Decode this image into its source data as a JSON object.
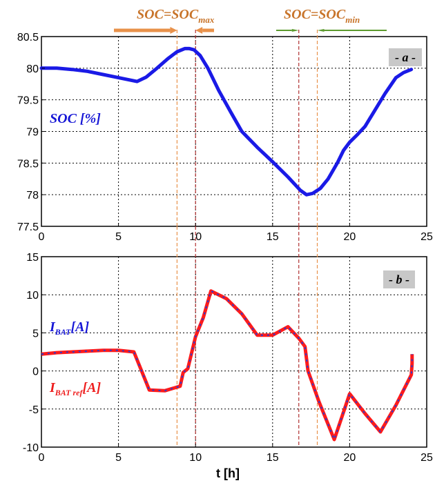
{
  "colors": {
    "soc_line": "#1a1ae6",
    "ibat_ref": "#ff1a1a",
    "ibat": "#2a3ad0",
    "orange_arrow": "#e8914a",
    "green_arrow": "#5c9a2e",
    "orange_annotation": "#c8742a",
    "tag_background": "#c8c8c8",
    "vline_orange": "#e8914a",
    "vline_red": "#b03030"
  },
  "annotations": {
    "soc_max": {
      "base": "SOC=SOC",
      "sub": "max"
    },
    "soc_min": {
      "base": "SOC=SOC",
      "sub": "min"
    }
  },
  "xlabel": "t [h]",
  "chart_data": [
    {
      "type": "line",
      "panel_tag": "- a -",
      "series_label": {
        "base": "SOC [%]"
      },
      "xlim": [
        0,
        25
      ],
      "ylim": [
        77.5,
        80.5
      ],
      "xticks": [
        "0",
        "5",
        "10",
        "15",
        "20",
        "25"
      ],
      "yticks": [
        "77.5",
        "78",
        "78.5",
        "79",
        "79.5",
        "80",
        "80.5"
      ],
      "grid": true,
      "series": [
        {
          "x": [
            0,
            1,
            2,
            3,
            4,
            5,
            5.6,
            6.2,
            6.8,
            7.5,
            8.2,
            8.8,
            9.3,
            9.6,
            9.9,
            10.3,
            10.8,
            11.5,
            12.3,
            13,
            14,
            15,
            16,
            16.8,
            17.2,
            17.6,
            18.1,
            18.6,
            19.2,
            19.6,
            20,
            20.5,
            21,
            21.6,
            22.3,
            23,
            23.5,
            24
          ],
          "y": [
            80.0,
            80.0,
            79.98,
            79.95,
            79.9,
            79.85,
            79.82,
            79.79,
            79.86,
            80.0,
            80.15,
            80.26,
            80.31,
            80.31,
            80.29,
            80.2,
            80.0,
            79.65,
            79.3,
            79.0,
            78.75,
            78.52,
            78.28,
            78.07,
            78.0,
            78.02,
            78.1,
            78.25,
            78.5,
            78.7,
            78.83,
            78.95,
            79.08,
            79.32,
            79.6,
            79.85,
            79.93,
            79.98
          ]
        }
      ]
    },
    {
      "type": "line",
      "panel_tag": "- b -",
      "xlim": [
        0,
        25
      ],
      "ylim": [
        -10,
        15
      ],
      "xticks": [
        "0",
        "5",
        "10",
        "15",
        "20",
        "25"
      ],
      "yticks": [
        "-10",
        "-5",
        "0",
        "5",
        "10",
        "15"
      ],
      "grid": true,
      "series": [
        {
          "label": {
            "base": "I",
            "sub": "BAT ref",
            "suffix": "[A]"
          },
          "x": [
            0,
            1,
            2,
            3,
            4,
            5,
            6,
            7,
            8,
            9,
            9.2,
            9.5,
            10,
            10.5,
            11,
            12,
            13,
            14,
            15,
            16,
            16.7,
            17.1,
            17.3,
            18,
            19,
            20,
            21,
            22,
            23,
            24,
            24.05,
            24.05
          ],
          "y": [
            2.2,
            2.4,
            2.5,
            2.6,
            2.7,
            2.7,
            2.5,
            -2.5,
            -2.6,
            -2.0,
            -0.2,
            0.3,
            4.5,
            7.0,
            10.5,
            9.5,
            7.5,
            4.7,
            4.7,
            5.8,
            4.3,
            3.2,
            0.0,
            -4.0,
            -9.0,
            -3.0,
            -5.6,
            -8.0,
            -4.5,
            -0.5,
            1.0,
            2.2
          ]
        },
        {
          "label": {
            "base": "I",
            "sub": "BAT",
            "suffix": "[A]"
          },
          "x": [
            0,
            1,
            2,
            3,
            4,
            5,
            6,
            7,
            8,
            9,
            9.2,
            9.5,
            10,
            10.5,
            11,
            12,
            13,
            14,
            15,
            16,
            16.7,
            17.1,
            17.3,
            18,
            19,
            20,
            21,
            22,
            23,
            24,
            24.05,
            24.05
          ],
          "y": [
            2.2,
            2.4,
            2.5,
            2.6,
            2.7,
            2.7,
            2.5,
            -2.5,
            -2.6,
            -2.0,
            -0.2,
            0.3,
            4.5,
            7.0,
            10.5,
            9.5,
            7.5,
            4.7,
            4.7,
            5.8,
            4.3,
            3.2,
            0.0,
            -4.0,
            -9.0,
            -3.0,
            -5.6,
            -8.0,
            -4.5,
            -0.5,
            1.0,
            2.2
          ]
        }
      ]
    }
  ],
  "vertical_markers": [
    {
      "x": 8.8,
      "style": "orange"
    },
    {
      "x": 10.0,
      "style": "red"
    },
    {
      "x": 16.7,
      "style": "red"
    },
    {
      "x": 17.9,
      "style": "orange"
    }
  ]
}
